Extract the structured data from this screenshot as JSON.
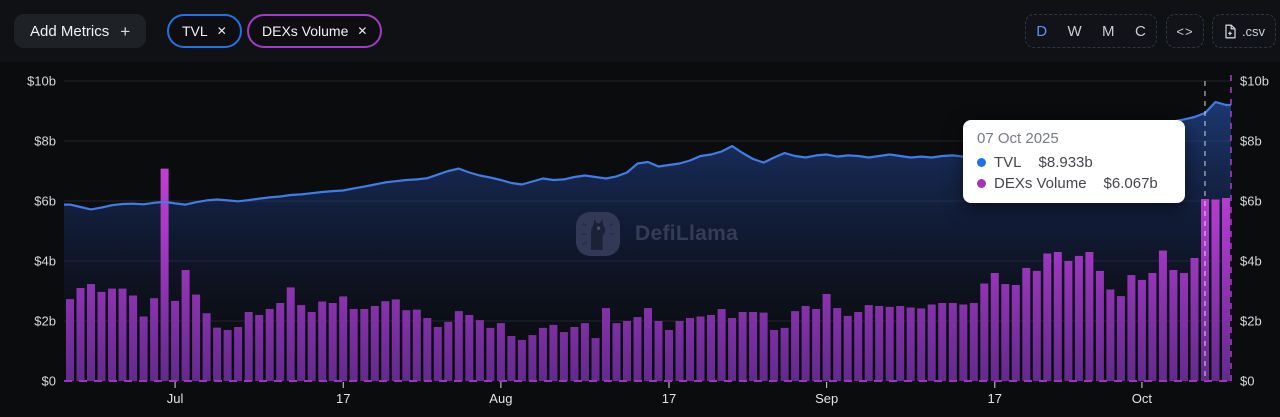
{
  "header": {
    "add_metrics_label": "Add Metrics",
    "add_metrics_plus": "+",
    "metrics": [
      {
        "label": "TVL",
        "close": "✕",
        "color": "#2172E5"
      },
      {
        "label": "DEXs Volume",
        "close": "✕",
        "color": "#a43bc4"
      }
    ],
    "interval_buttons": [
      {
        "label": "D",
        "active": true
      },
      {
        "label": "W",
        "active": false
      },
      {
        "label": "M",
        "active": false
      },
      {
        "label": "C",
        "active": false
      }
    ],
    "embed_label": "<>",
    "csv_label": ".csv"
  },
  "watermark": {
    "text": "DefiLlama"
  },
  "tooltip": {
    "date": "07 Oct 2025",
    "rows": [
      {
        "name": "TVL",
        "value": "$8.933b",
        "color": "#2172E5"
      },
      {
        "name": "DEXs Volume",
        "value": "$6.067b",
        "color": "#a234b5"
      }
    ]
  },
  "chart_data": {
    "type": "line+bar",
    "unit": "USD billions",
    "ylim": [
      0,
      10
    ],
    "grid": true,
    "legend_position": "none",
    "y_ticks": [
      "$0",
      "$2b",
      "$4b",
      "$6b",
      "$8b",
      "$10b"
    ],
    "x_ticks": [
      {
        "label": "Jul",
        "day": 10
      },
      {
        "label": "17",
        "day": 26
      },
      {
        "label": "Aug",
        "day": 41
      },
      {
        "label": "17",
        "day": 57
      },
      {
        "label": "Sep",
        "day": 72
      },
      {
        "label": "17",
        "day": 88
      },
      {
        "label": "Oct",
        "day": 102
      }
    ],
    "highlight_day": 108,
    "series": [
      {
        "name": "TVL",
        "type": "line",
        "color": "#3f7ce8",
        "values": [
          5.88,
          5.8,
          5.72,
          5.78,
          5.86,
          5.9,
          5.91,
          5.89,
          5.94,
          5.97,
          5.92,
          5.88,
          5.96,
          6.02,
          6.05,
          6.02,
          5.99,
          6.03,
          6.08,
          6.12,
          6.15,
          6.2,
          6.22,
          6.26,
          6.3,
          6.33,
          6.35,
          6.42,
          6.48,
          6.55,
          6.62,
          6.66,
          6.7,
          6.72,
          6.76,
          6.88,
          7.0,
          7.08,
          6.95,
          6.85,
          6.78,
          6.7,
          6.6,
          6.55,
          6.65,
          6.75,
          6.7,
          6.72,
          6.8,
          6.85,
          6.8,
          6.75,
          6.82,
          6.95,
          7.25,
          7.3,
          7.15,
          7.2,
          7.25,
          7.35,
          7.5,
          7.55,
          7.65,
          7.83,
          7.6,
          7.4,
          7.28,
          7.45,
          7.6,
          7.5,
          7.45,
          7.52,
          7.55,
          7.48,
          7.52,
          7.5,
          7.45,
          7.5,
          7.55,
          7.5,
          7.45,
          7.48,
          7.45,
          7.5,
          7.52,
          7.48,
          7.45,
          7.43,
          7.5,
          7.55,
          7.62,
          7.68,
          7.75,
          7.82,
          7.9,
          7.98,
          8.05,
          8.12,
          8.2,
          8.28,
          8.35,
          8.42,
          8.5,
          8.55,
          8.6,
          8.65,
          8.72,
          8.8,
          8.933,
          9.3,
          9.2
        ]
      },
      {
        "name": "DEXs Volume",
        "type": "bar",
        "color_top": "#d243d8",
        "color_bottom": "#632a8d",
        "values": [
          2.73,
          3.1,
          3.23,
          2.97,
          3.08,
          3.08,
          2.85,
          2.15,
          2.76,
          7.08,
          2.67,
          3.7,
          2.88,
          2.26,
          1.78,
          1.7,
          1.8,
          2.3,
          2.2,
          2.4,
          2.6,
          3.12,
          2.53,
          2.3,
          2.65,
          2.6,
          2.82,
          2.4,
          2.4,
          2.5,
          2.66,
          2.72,
          2.36,
          2.38,
          2.1,
          1.8,
          1.97,
          2.33,
          2.2,
          2.03,
          1.77,
          1.93,
          1.5,
          1.37,
          1.53,
          1.77,
          1.87,
          1.63,
          1.8,
          1.93,
          1.43,
          2.43,
          1.93,
          2.0,
          2.13,
          2.43,
          2.0,
          1.7,
          2.0,
          2.1,
          2.15,
          2.2,
          2.4,
          2.1,
          2.3,
          2.3,
          2.28,
          1.7,
          1.77,
          2.33,
          2.5,
          2.4,
          2.9,
          2.43,
          2.17,
          2.3,
          2.53,
          2.5,
          2.47,
          2.5,
          2.45,
          2.42,
          2.55,
          2.6,
          2.6,
          2.55,
          2.6,
          3.25,
          3.6,
          3.23,
          3.2,
          3.77,
          3.67,
          4.25,
          4.3,
          4.0,
          4.17,
          4.3,
          3.67,
          3.05,
          2.83,
          3.53,
          3.37,
          3.6,
          4.35,
          3.7,
          3.6,
          4.1,
          6.067,
          6.05,
          6.1
        ]
      }
    ]
  }
}
